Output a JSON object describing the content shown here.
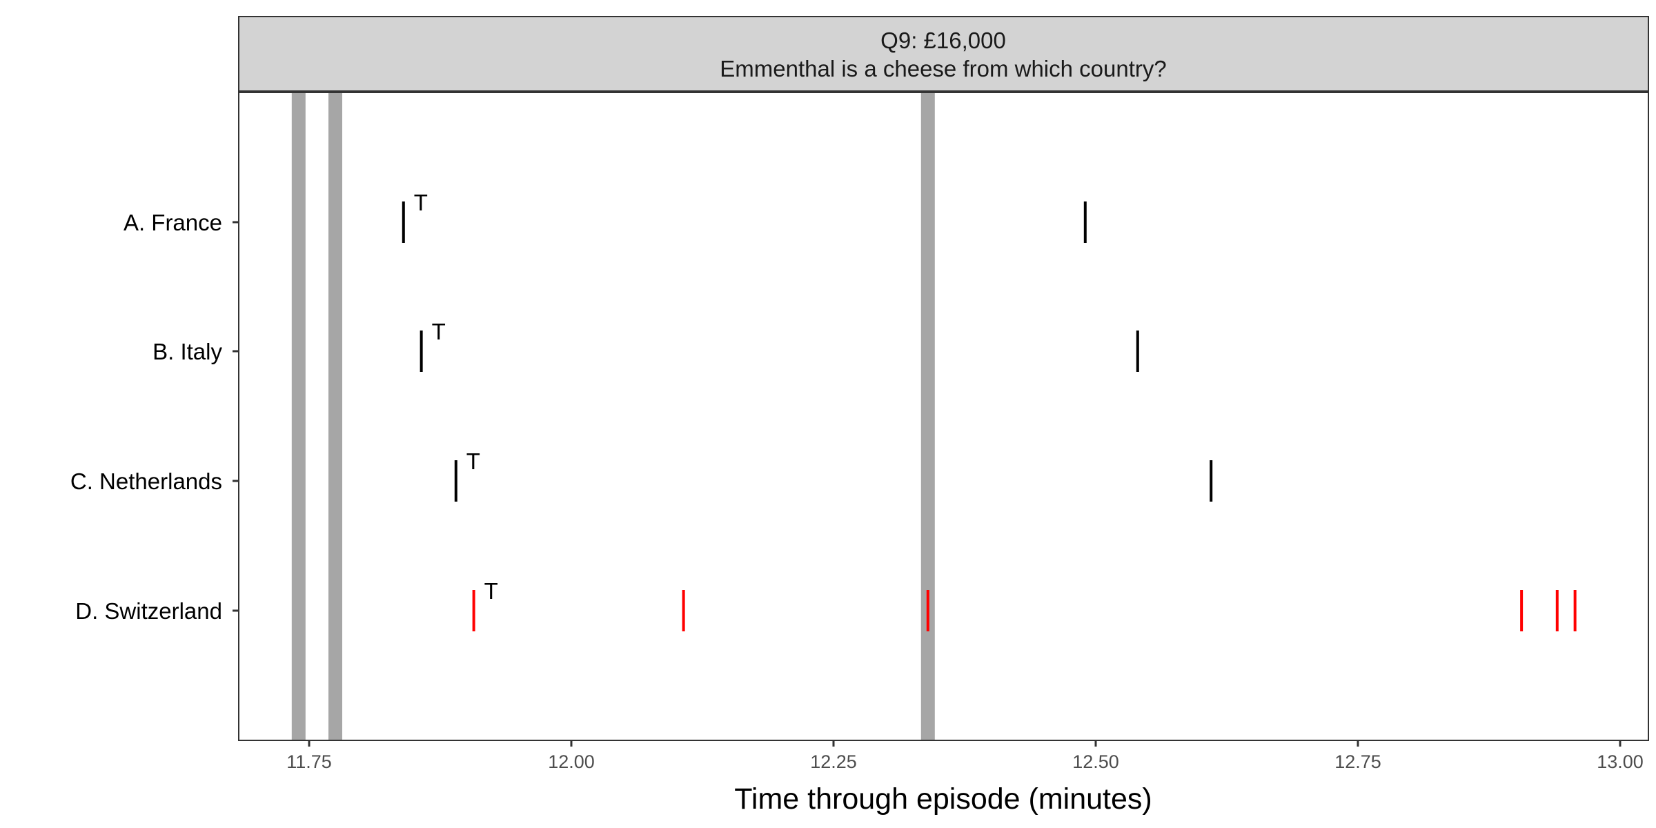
{
  "chart_data": {
    "type": "scatter",
    "facet_title": {
      "line1": "Q9: £16,000",
      "line2": "Emmenthal is a cheese from which country?"
    },
    "xlabel": "Time through episode (minutes)",
    "ylabel": "",
    "xlim": [
      11.68,
      13.03
    ],
    "x_ticks": [
      {
        "value": 11.75,
        "label": "11.75"
      },
      {
        "value": 12.0,
        "label": "12.00"
      },
      {
        "value": 12.25,
        "label": "12.25"
      },
      {
        "value": 12.5,
        "label": "12.50"
      },
      {
        "value": 12.75,
        "label": "12.75"
      },
      {
        "value": 13.0,
        "label": "13.00"
      }
    ],
    "categories": [
      "A. France",
      "B. Italy",
      "C. Netherlands",
      "D. Switzerland"
    ],
    "shaded_times": [
      11.74,
      11.775,
      12.34
    ],
    "series": [
      {
        "category": "A. France",
        "color": "#000000",
        "times": [
          11.84,
          12.49
        ],
        "t_at": 11.84,
        "t_label": "T"
      },
      {
        "category": "B. Italy",
        "color": "#000000",
        "times": [
          11.857,
          12.54
        ],
        "t_at": 11.857,
        "t_label": "T"
      },
      {
        "category": "C. Netherlands",
        "color": "#000000",
        "times": [
          11.89,
          12.61
        ],
        "t_at": 11.89,
        "t_label": "T"
      },
      {
        "category": "D. Switzerland",
        "color": "#ff0000",
        "times": [
          11.907,
          12.107,
          12.34,
          12.906,
          12.94,
          12.957
        ],
        "t_at": 11.907,
        "t_label": "T"
      }
    ],
    "shade_color": "#a6a6a6",
    "strip_color": "#d3d3d3",
    "grid": false,
    "legend": "none"
  }
}
